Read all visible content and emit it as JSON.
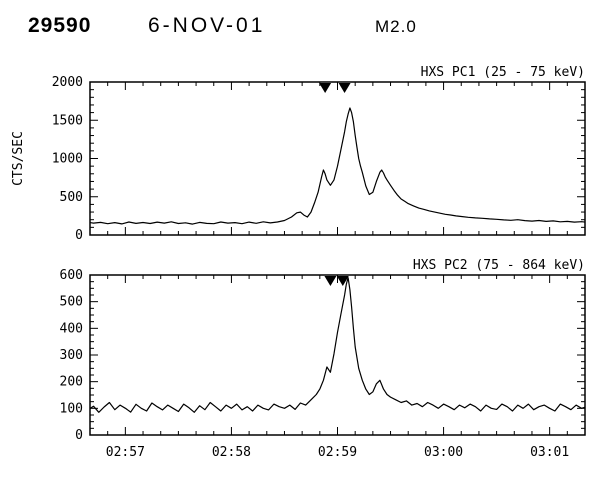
{
  "header": {
    "event_id": "29590",
    "date": "6-NOV-01",
    "flare_class": "M2.0"
  },
  "chart_data": [
    {
      "type": "line",
      "title": "HXS PC1 (25 - 75 keV)",
      "ylabel": "CTS/SEC",
      "xlabel": "",
      "ylim": [
        0,
        2000
      ],
      "yticks": [
        0,
        500,
        1000,
        1500,
        2000
      ],
      "y_minor_step": 100,
      "x_note": "time axis in seconds since 02:56:30",
      "xlim_sec": [
        10,
        290
      ],
      "xticks_sec": [
        30,
        90,
        150,
        210,
        270
      ],
      "xtick_labels": [
        "02:57",
        "02:58",
        "02:59",
        "03:00",
        "03:01"
      ],
      "x_minor_step_sec": 10,
      "show_x_labels": false,
      "marker_times_sec": [
        143,
        154
      ],
      "series": [
        {
          "name": "HXS PC1",
          "points": [
            [
              0,
              160
            ],
            [
              4,
              150
            ],
            [
              8,
              170
            ],
            [
              12,
              155
            ],
            [
              16,
              165
            ],
            [
              20,
              148
            ],
            [
              24,
              162
            ],
            [
              28,
              145
            ],
            [
              32,
              170
            ],
            [
              36,
              152
            ],
            [
              40,
              163
            ],
            [
              44,
              150
            ],
            [
              48,
              168
            ],
            [
              52,
              155
            ],
            [
              56,
              172
            ],
            [
              60,
              150
            ],
            [
              64,
              160
            ],
            [
              68,
              143
            ],
            [
              72,
              165
            ],
            [
              76,
              152
            ],
            [
              80,
              148
            ],
            [
              84,
              170
            ],
            [
              88,
              155
            ],
            [
              92,
              162
            ],
            [
              96,
              148
            ],
            [
              100,
              168
            ],
            [
              104,
              153
            ],
            [
              108,
              172
            ],
            [
              112,
              158
            ],
            [
              116,
              170
            ],
            [
              120,
              190
            ],
            [
              124,
              235
            ],
            [
              127,
              290
            ],
            [
              129,
              300
            ],
            [
              131,
              260
            ],
            [
              133,
              235
            ],
            [
              135,
              300
            ],
            [
              137,
              420
            ],
            [
              139,
              560
            ],
            [
              141,
              760
            ],
            [
              142,
              850
            ],
            [
              143,
              800
            ],
            [
              144,
              720
            ],
            [
              146,
              650
            ],
            [
              148,
              720
            ],
            [
              150,
              900
            ],
            [
              152,
              1120
            ],
            [
              154,
              1350
            ],
            [
              155,
              1480
            ],
            [
              156,
              1580
            ],
            [
              157,
              1660
            ],
            [
              158,
              1600
            ],
            [
              159,
              1480
            ],
            [
              160,
              1300
            ],
            [
              161,
              1150
            ],
            [
              162,
              1000
            ],
            [
              163,
              900
            ],
            [
              164,
              820
            ],
            [
              166,
              640
            ],
            [
              168,
              530
            ],
            [
              170,
              560
            ],
            [
              172,
              700
            ],
            [
              174,
              820
            ],
            [
              175,
              850
            ],
            [
              176,
              810
            ],
            [
              177,
              760
            ],
            [
              178,
              720
            ],
            [
              180,
              650
            ],
            [
              182,
              580
            ],
            [
              184,
              520
            ],
            [
              186,
              470
            ],
            [
              188,
              440
            ],
            [
              190,
              410
            ],
            [
              193,
              380
            ],
            [
              196,
              352
            ],
            [
              199,
              335
            ],
            [
              202,
              315
            ],
            [
              205,
              300
            ],
            [
              208,
              285
            ],
            [
              211,
              270
            ],
            [
              214,
              262
            ],
            [
              217,
              250
            ],
            [
              220,
              242
            ],
            [
              224,
              232
            ],
            [
              228,
              224
            ],
            [
              232,
              218
            ],
            [
              236,
              210
            ],
            [
              240,
              205
            ],
            [
              244,
              198
            ],
            [
              248,
              192
            ],
            [
              252,
              200
            ],
            [
              256,
              188
            ],
            [
              260,
              182
            ],
            [
              264,
              190
            ],
            [
              268,
              178
            ],
            [
              272,
              184
            ],
            [
              276,
              172
            ],
            [
              280,
              178
            ],
            [
              284,
              168
            ],
            [
              288,
              174
            ],
            [
              292,
              165
            ],
            [
              296,
              170
            ],
            [
              300,
              162
            ]
          ]
        }
      ]
    },
    {
      "type": "line",
      "title": "HXS PC2 (75 - 864 keV)",
      "ylabel": "",
      "xlabel": "",
      "ylim": [
        0,
        600
      ],
      "yticks": [
        0,
        100,
        200,
        300,
        400,
        500,
        600
      ],
      "y_minor_step": 25,
      "x_note": "time axis in seconds since 02:56:30",
      "xlim_sec": [
        10,
        290
      ],
      "xticks_sec": [
        30,
        90,
        150,
        210,
        270
      ],
      "xtick_labels": [
        "02:57",
        "02:58",
        "02:59",
        "03:00",
        "03:01"
      ],
      "x_minor_step_sec": 10,
      "show_x_labels": true,
      "marker_times_sec": [
        146,
        153
      ],
      "series": [
        {
          "name": "HXS PC2",
          "points": [
            [
              0,
              100
            ],
            [
              3,
              92
            ],
            [
              6,
              115
            ],
            [
              9,
              95
            ],
            [
              12,
              108
            ],
            [
              15,
              85
            ],
            [
              18,
              105
            ],
            [
              21,
              122
            ],
            [
              24,
              95
            ],
            [
              27,
              112
            ],
            [
              30,
              100
            ],
            [
              33,
              86
            ],
            [
              36,
              115
            ],
            [
              39,
              100
            ],
            [
              42,
              90
            ],
            [
              45,
              120
            ],
            [
              48,
              106
            ],
            [
              51,
              94
            ],
            [
              54,
              112
            ],
            [
              57,
              100
            ],
            [
              60,
              88
            ],
            [
              63,
              116
            ],
            [
              66,
              102
            ],
            [
              69,
              85
            ],
            [
              72,
              110
            ],
            [
              75,
              95
            ],
            [
              78,
              122
            ],
            [
              81,
              106
            ],
            [
              84,
              90
            ],
            [
              87,
              112
            ],
            [
              90,
              100
            ],
            [
              93,
              116
            ],
            [
              96,
              94
            ],
            [
              99,
              106
            ],
            [
              102,
              90
            ],
            [
              105,
              112
            ],
            [
              108,
              100
            ],
            [
              111,
              94
            ],
            [
              114,
              116
            ],
            [
              117,
              106
            ],
            [
              120,
              100
            ],
            [
              123,
              112
            ],
            [
              126,
              96
            ],
            [
              129,
              120
            ],
            [
              132,
              112
            ],
            [
              135,
              132
            ],
            [
              138,
              152
            ],
            [
              140,
              172
            ],
            [
              142,
              205
            ],
            [
              144,
              255
            ],
            [
              146,
              235
            ],
            [
              148,
              305
            ],
            [
              150,
              385
            ],
            [
              152,
              455
            ],
            [
              154,
              525
            ],
            [
              155,
              565
            ],
            [
              156,
              590
            ],
            [
              157,
              545
            ],
            [
              158,
              480
            ],
            [
              159,
              400
            ],
            [
              160,
              330
            ],
            [
              162,
              250
            ],
            [
              164,
              205
            ],
            [
              166,
              172
            ],
            [
              168,
              152
            ],
            [
              170,
              162
            ],
            [
              172,
              192
            ],
            [
              174,
              205
            ],
            [
              176,
              172
            ],
            [
              178,
              152
            ],
            [
              180,
              142
            ],
            [
              183,
              132
            ],
            [
              186,
              122
            ],
            [
              189,
              128
            ],
            [
              192,
              112
            ],
            [
              195,
              118
            ],
            [
              198,
              106
            ],
            [
              201,
              122
            ],
            [
              204,
              112
            ],
            [
              207,
              100
            ],
            [
              210,
              116
            ],
            [
              213,
              106
            ],
            [
              216,
              95
            ],
            [
              219,
              112
            ],
            [
              222,
              102
            ],
            [
              225,
              116
            ],
            [
              228,
              106
            ],
            [
              231,
              90
            ],
            [
              234,
              112
            ],
            [
              237,
              100
            ],
            [
              240,
              96
            ],
            [
              243,
              116
            ],
            [
              246,
              106
            ],
            [
              249,
              90
            ],
            [
              252,
              112
            ],
            [
              255,
              100
            ],
            [
              258,
              116
            ],
            [
              261,
              95
            ],
            [
              264,
              106
            ],
            [
              267,
              112
            ],
            [
              270,
              100
            ],
            [
              273,
              90
            ],
            [
              276,
              116
            ],
            [
              279,
              106
            ],
            [
              282,
              95
            ],
            [
              285,
              112
            ],
            [
              288,
              100
            ],
            [
              291,
              106
            ],
            [
              294,
              95
            ],
            [
              297,
              112
            ],
            [
              300,
              100
            ]
          ]
        }
      ]
    }
  ]
}
